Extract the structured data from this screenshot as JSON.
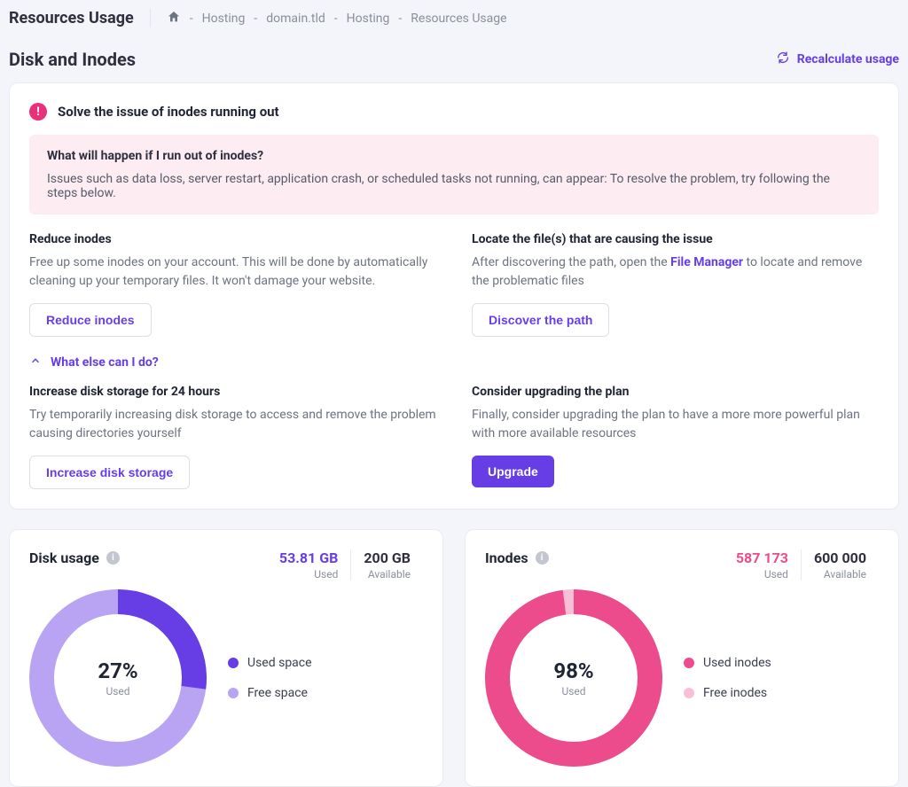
{
  "colors": {
    "accent": "#673de6",
    "pink": "#ec4c8b",
    "pink_light": "#f9bfd6",
    "purple_light": "#b9a4f4",
    "text": "#2f2f3f",
    "muted": "#8a8f9c",
    "bg": "#f4f5fa",
    "card_border": "#e9e9f1",
    "pink_box_bg": "#fdecf1"
  },
  "header": {
    "title": "Resources Usage",
    "breadcrumbs": [
      "Hosting",
      "domain.tld",
      "Hosting",
      "Resources Usage"
    ]
  },
  "section": {
    "title": "Disk and Inodes",
    "recalculate_label": "Recalculate usage"
  },
  "alert": {
    "title": "Solve the issue of inodes running out",
    "box": {
      "question": "What will happen if I run out of inodes?",
      "answer": "Issues such as data loss, server restart, application crash, or scheduled tasks not running, can appear: To resolve the problem, try following the steps below."
    },
    "reduce": {
      "title": "Reduce inodes",
      "body": "Free up some inodes on your account. This will be done by automatically cleaning up your temporary files. It won't damage your website.",
      "button": "Reduce inodes"
    },
    "locate": {
      "title": "Locate the file(s) that are causing the issue",
      "body_pre": "After discovering the path, open the ",
      "body_link": "File Manager",
      "body_post": " to locate and remove the problematic files",
      "button": "Discover the path"
    },
    "what_else": "What else can I do?",
    "increase": {
      "title": "Increase disk storage for 24 hours",
      "body": "Try temporarily increasing disk storage to access and remove the problem causing directories yourself",
      "button": "Increase disk storage"
    },
    "upgrade": {
      "title": "Consider upgrading the plan",
      "body": "Finally, consider upgrading the plan to have a more more powerful plan with more available resources",
      "button": "Upgrade"
    }
  },
  "disk": {
    "title": "Disk usage",
    "used_value": "53.81 GB",
    "used_label": "Used",
    "avail_value": "200 GB",
    "avail_label": "Available",
    "chart": {
      "type": "donut",
      "percent": 27,
      "percent_label": "27%",
      "sub_label": "Used",
      "ring_width": 28,
      "diameter": 200,
      "used_color": "#673de6",
      "free_color": "#b9a4f4",
      "bg_color": "#ffffff"
    },
    "legend": {
      "used": {
        "label": "Used space",
        "color": "#673de6"
      },
      "free": {
        "label": "Free space",
        "color": "#b9a4f4"
      }
    }
  },
  "inodes": {
    "title": "Inodes",
    "used_value": "587 173",
    "used_label": "Used",
    "avail_value": "600 000",
    "avail_label": "Available",
    "chart": {
      "type": "donut",
      "percent": 98,
      "percent_label": "98%",
      "sub_label": "Used",
      "ring_width": 28,
      "diameter": 200,
      "used_color": "#ec4c8b",
      "free_color": "#f9bfd6",
      "bg_color": "#ffffff"
    },
    "legend": {
      "used": {
        "label": "Used inodes",
        "color": "#ec4c8b"
      },
      "free": {
        "label": "Free inodes",
        "color": "#f9bfd6"
      }
    }
  }
}
